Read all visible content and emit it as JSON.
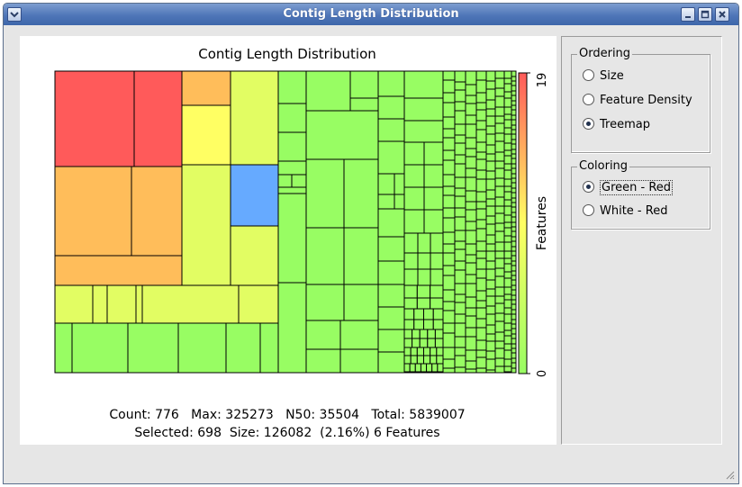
{
  "window": {
    "title": "Contig Length Distribution",
    "buttons": [
      "minimize",
      "maximize",
      "close"
    ]
  },
  "plot": {
    "title": "Contig Length Distribution",
    "colorbar": {
      "label": "Features",
      "max": "19",
      "min": "0",
      "gradient": [
        "#98fd63",
        "#ffff63",
        "#ff5a5a"
      ]
    },
    "stats_line1": "Count: 776   Max: 325273   N50: 35504   Total: 5839007",
    "stats_line2": "Selected: 698  Size: 126082  (2.16%) 6 Features",
    "selected_color": "#66aaff"
  },
  "ordering": {
    "label": "Ordering",
    "options": [
      "Size",
      "Feature Density",
      "Treemap"
    ],
    "selected": "Treemap"
  },
  "coloring": {
    "label": "Coloring",
    "options": [
      "Green - Red",
      "White - Red"
    ],
    "selected": "Green - Red"
  },
  "colors": {
    "title_bar": "#4f76b8",
    "red": "#ff5a5a",
    "orange": "#ffbd5a",
    "yellow": "#ffff63",
    "lime": "#e2fd63",
    "green": "#98fd63",
    "blue": "#66aaff"
  }
}
